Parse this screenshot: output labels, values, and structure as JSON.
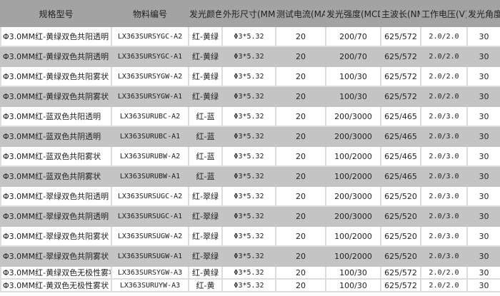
{
  "headers": [
    "规格型号",
    "物料编号",
    "发光颜色",
    "外形尺寸(MM)",
    "测试电流(MA)",
    "发光强度(MCD)",
    "主波长(NM)",
    "工作电压(V)",
    "发光角度"
  ],
  "rows": [
    [
      "Φ3.0MM红-黄绿双色共阳透明",
      "LX363SURSYGC-A2",
      "红-黄绿",
      "Φ3*5.32",
      "20",
      "200/70",
      "625/572",
      "2.0/2.0",
      "30"
    ],
    [
      "Φ3.0MM红-黄绿双色共阴透明",
      "LX363SURSYGC-A1",
      "红-黄绿",
      "Φ3*5.32",
      "20",
      "200/70",
      "625/572",
      "2.0/2.0",
      "30"
    ],
    [
      "Φ3.0MM红-黄绿双色共阳雾状",
      "LX363SURSYGW-A2",
      "红-黄绿",
      "Φ3*5.32",
      "20",
      "100/30",
      "625/572",
      "2.0/2.0",
      "30"
    ],
    [
      "Φ3.0MM红-黄绿双色共阴雾状",
      "LX363SURSYGW-A1",
      "红-黄绿",
      "Φ3*5.32",
      "20",
      "100/30",
      "625/572",
      "2.0/2.0",
      "30"
    ],
    [
      "Φ3.0MM红-蓝双色共阳透明",
      "LX363SURUBC-A2",
      "红-蓝",
      "Φ3*5.32",
      "20",
      "200/3000",
      "625/465",
      "2.0/3.0",
      "30"
    ],
    [
      "Φ3.0MM红-蓝双色共阴透明",
      "LX363SURUBC-A1",
      "红-蓝",
      "Φ3*5.32",
      "20",
      "200/3000",
      "625/465",
      "2.0/3.0",
      "30"
    ],
    [
      "Φ3.0MM红-蓝双色共阳雾状",
      "LX363SURUBW-A2",
      "红-蓝",
      "Φ3*5.32",
      "20",
      "100/2000",
      "625/465",
      "2.0/3.0",
      "30"
    ],
    [
      "Φ3.0MM红-蓝双色共阴雾状",
      "LX363SURUBW-A1",
      "红-蓝",
      "Φ3*5.32",
      "20",
      "100/2000",
      "625/465",
      "2.0/3.0",
      "30"
    ],
    [
      "Φ3.0MM红-翠绿双色共阳透明",
      "LX363SURSUGC-A2",
      "红-翠绿",
      "Φ3*5.32",
      "20",
      "200/3000",
      "625/520",
      "2.0/3.0",
      "30"
    ],
    [
      "Φ3.0MM红-翠绿双色共阴透明",
      "LX363SURSUGC-A1",
      "红-翠绿",
      "Φ3*5.32",
      "20",
      "200/3000",
      "625/520",
      "2.0/3.0",
      "30"
    ],
    [
      "Φ3.0MM红-翠绿双色共阳雾状",
      "LX363SURSUGW-A2",
      "红-翠绿",
      "Φ3*5.32",
      "20",
      "100/2000",
      "625/520",
      "2.0/3.0",
      "30"
    ],
    [
      "Φ3.0MM红-翠绿双色共阴雾状",
      "LX363SURSUGW-A1",
      "红-翠绿",
      "Φ3*5.32",
      "20",
      "100/2000",
      "625/520",
      "2.0/3.0",
      "30"
    ],
    [
      "Φ3.0MM红-黄绿双色无极性雾状",
      "LX363SURSYGW-A3",
      "红-黄绿",
      "Φ3*5.32",
      "20",
      "100/30",
      "625/572",
      "2.0/2.0",
      "30"
    ],
    [
      "Φ3.0MM红-黄双色无极性雾状",
      "LX363SURUYW-A3",
      "红-黄",
      "Φ3*5.32",
      "20",
      "100/30",
      "625/572",
      "2.0/2.0",
      "30"
    ]
  ]
}
